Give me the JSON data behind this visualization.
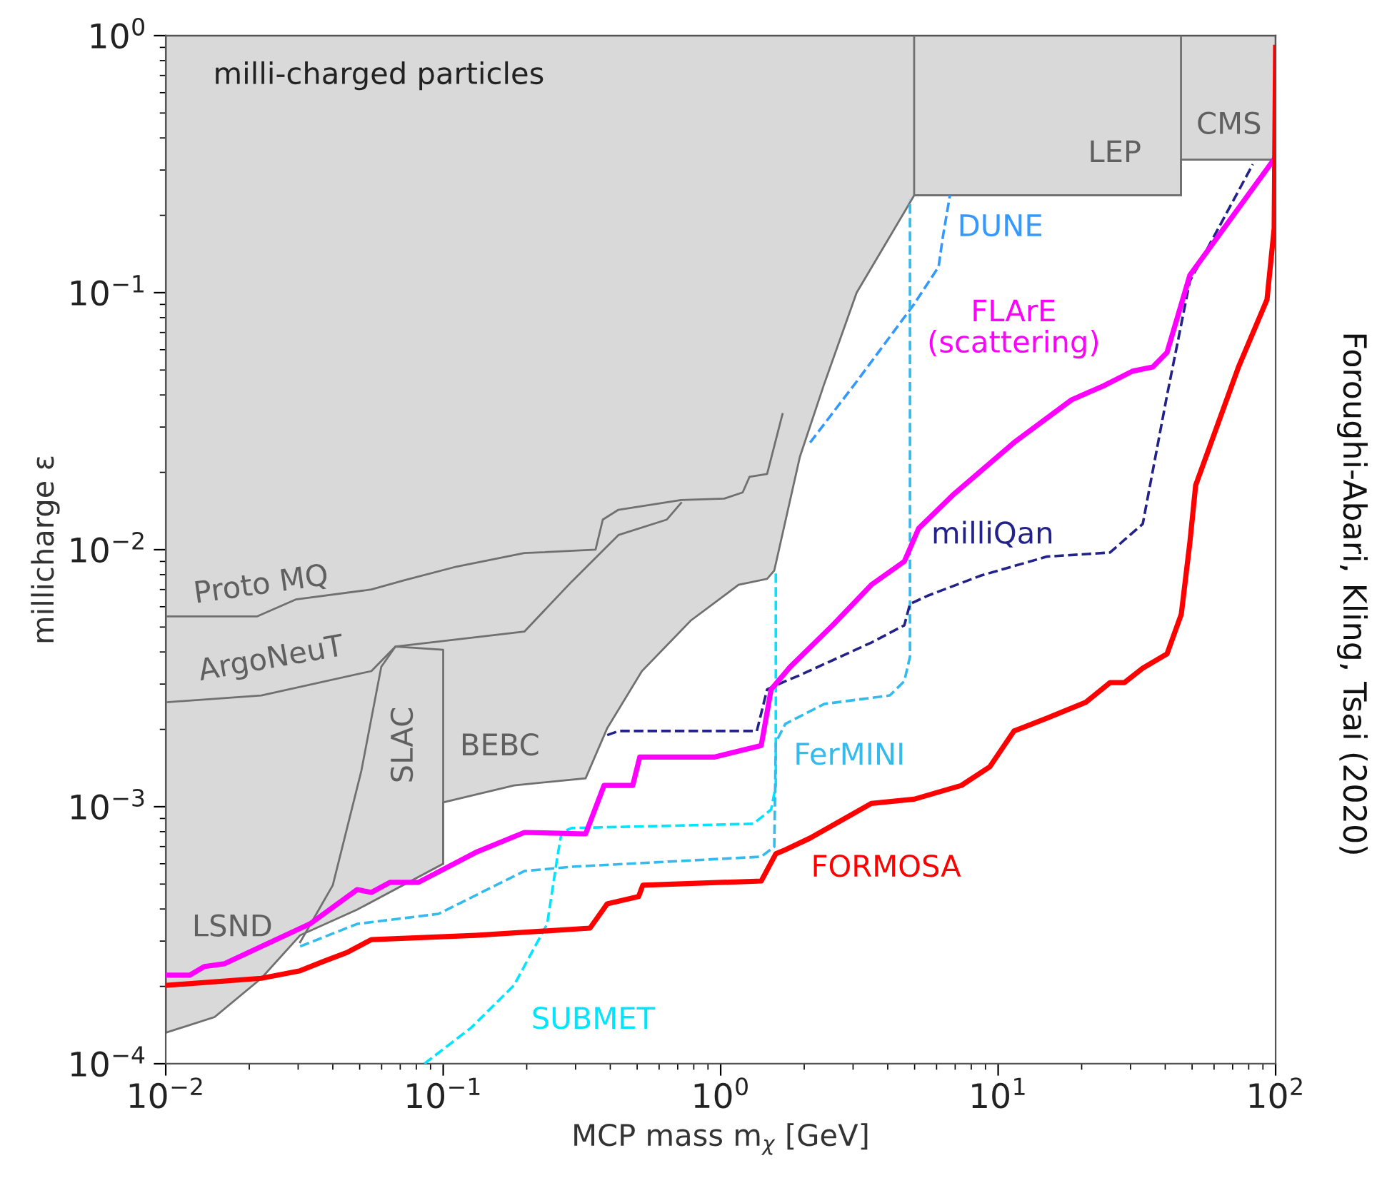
{
  "chart_data": {
    "type": "line",
    "xlabel": "MCP mass m$_{χ}$ [GeV]",
    "ylabel": "millicharge ε",
    "log": "xy",
    "grid": false,
    "legend": false,
    "xlim": [
      0.01,
      100
    ],
    "ylim": [
      0.0001,
      1
    ],
    "xticks": [
      {
        "value": 0.01,
        "label": "10$^{−2}$"
      },
      {
        "value": 0.1,
        "label": "10$^{−1}$"
      },
      {
        "value": 1,
        "label": "10$^{0}$"
      },
      {
        "value": 10,
        "label": "10$^{1}$"
      },
      {
        "value": 100,
        "label": "10$^{2}$"
      }
    ],
    "yticks": [
      {
        "value": 0.0001,
        "label": "10$^{−4}$"
      },
      {
        "value": 0.001,
        "label": "10$^{−3}$"
      },
      {
        "value": 0.01,
        "label": "10$^{−2}$"
      },
      {
        "value": 0.1,
        "label": "10$^{−1}$"
      },
      {
        "value": 1,
        "label": "10$^{0}$"
      }
    ],
    "series": [
      {
        "type": "area",
        "color": "#d9d9d9",
        "x": [
          0.01,
          0.01,
          0.015,
          0.0221,
          0.0305,
          0.049,
          0.1,
          0.1,
          0.18,
          0.326,
          0.39,
          0.52,
          0.78,
          1.16,
          1.47,
          1.56,
          1.93,
          2.35,
          3.09,
          4.24,
          4.98,
          45.6,
          45.6,
          100,
          100
        ],
        "values": [
          1,
          0.000132,
          0.000152,
          0.000215,
          0.000316,
          0.000398,
          0.0006,
          0.00104,
          0.00121,
          0.00129,
          0.00202,
          0.00337,
          0.0053,
          0.0073,
          0.0077,
          0.0083,
          0.023,
          0.0435,
          0.1,
          0.178,
          0.239,
          0.239,
          0.329,
          0.329,
          1
        ]
      },
      {
        "color": "#707070",
        "line_style": "solid",
        "x": [
          0.0101,
          0.0213,
          0.0294,
          0.0551,
          0.0722,
          0.112,
          0.196,
          0.354,
          0.376,
          0.428,
          0.72,
          1.03,
          1.2,
          1.27,
          1.47,
          1.67
        ],
        "values": [
          0.0055,
          0.0055,
          0.0064,
          0.007,
          0.0076,
          0.0086,
          0.0097,
          0.01,
          0.0131,
          0.0143,
          0.0156,
          0.0158,
          0.0167,
          0.0192,
          0.0197,
          0.0337
        ]
      },
      {
        "color": "#707070",
        "line_style": "solid",
        "x": [
          0.0101,
          0.0221,
          0.0551,
          0.0673,
          0.196,
          0.29,
          0.428,
          0.64,
          0.72
        ],
        "values": [
          0.00255,
          0.00271,
          0.00337,
          0.0042,
          0.0048,
          0.0075,
          0.0114,
          0.0131,
          0.0152
        ]
      },
      {
        "color": "#707070",
        "line_style": "solid",
        "x": [
          0.0305,
          0.04,
          0.0507,
          0.0598,
          0.0673,
          0.1,
          0.1
        ],
        "values": [
          0.000297,
          0.000495,
          0.00138,
          0.0035,
          0.0042,
          0.00408,
          0.0006
        ]
      },
      {
        "color": "#707070",
        "line_style": "solid",
        "x": [
          4.98,
          4.98,
          45.6,
          45.6
        ],
        "values": [
          1,
          0.239,
          0.239,
          1
        ]
      },
      {
        "name": "DUNE",
        "color": "#3399ff",
        "line_style": "dashed",
        "x": [
          2.1,
          3.1,
          4.98,
          6.1,
          6.31,
          6.7
        ],
        "values": [
          0.0261,
          0.0453,
          0.0903,
          0.126,
          0.163,
          0.239
        ]
      },
      {
        "name": "SUBMET",
        "color": "#00e5ff",
        "line_style": "dashed",
        "x": [
          0.0855,
          0.126,
          0.18,
          0.237,
          0.258,
          0.267,
          0.29,
          1.31,
          1.52,
          1.58,
          1.58
        ],
        "values": [
          0.0001,
          0.000138,
          0.000202,
          0.00035,
          0.000639,
          0.000794,
          0.000826,
          0.000858,
          0.000975,
          0.00121,
          0.0083
        ]
      },
      {
        "name": "FerMINI",
        "color": "#33bbee",
        "line_style": "dashed",
        "x": [
          0.0305,
          0.049,
          0.0962,
          0.196,
          0.29,
          1.4,
          1.56,
          1.58,
          1.71,
          2.36,
          4.07,
          4.59,
          4.81,
          4.81
        ],
        "values": [
          0.000286,
          0.00035,
          0.000383,
          0.000562,
          0.000584,
          0.000639,
          0.000699,
          0.00178,
          0.0021,
          0.00251,
          0.00271,
          0.00308,
          0.00383,
          0.23
        ]
      },
      {
        "name": "milliQan",
        "color": "#22228a",
        "line_style": "dashed",
        "x": [
          0.39,
          0.429,
          1.35,
          1.47,
          1.71,
          1.93,
          3.49,
          4.59,
          4.81,
          5.61,
          8.69,
          15,
          25.3,
          33.2,
          40.6,
          49.1,
          82.8
        ],
        "values": [
          0.0019,
          0.00197,
          0.00197,
          0.00286,
          0.00308,
          0.00325,
          0.00435,
          0.00508,
          0.00615,
          0.00664,
          0.00794,
          0.0094,
          0.00975,
          0.0126,
          0.0398,
          0.111,
          0.316
        ]
      },
      {
        "name": "FLArE\n(scattering)",
        "color": "#ff00ff",
        "line_style": "solid",
        "x": [
          0.0101,
          0.0122,
          0.0138,
          0.0163,
          0.0221,
          0.0331,
          0.049,
          0.0551,
          0.0643,
          0.0814,
          0.131,
          0.196,
          0.326,
          0.38,
          0.482,
          0.511,
          0.948,
          1.4,
          1.52,
          1.78,
          2.54,
          3.49,
          4.59,
          5.17,
          6.86,
          11.4,
          18.4,
          24.1,
          30.5,
          36.1,
          40.6,
          49.1,
          100
        ],
        "values": [
          0.000221,
          0.000221,
          0.000239,
          0.000245,
          0.000286,
          0.00035,
          0.000476,
          0.000464,
          0.000508,
          0.000508,
          0.000664,
          0.000794,
          0.000784,
          0.00121,
          0.00121,
          0.00156,
          0.00156,
          0.00173,
          0.00286,
          0.0035,
          0.0051,
          0.0073,
          0.009,
          0.0121,
          0.0163,
          0.0261,
          0.0383,
          0.0435,
          0.0495,
          0.0514,
          0.0585,
          0.117,
          0.337
        ]
      },
      {
        "name": "FORMOSA",
        "color": "#ff0000",
        "line_style": "solid",
        "x": [
          0.0101,
          0.0221,
          0.0305,
          0.0373,
          0.045,
          0.0551,
          0.131,
          0.338,
          0.39,
          0.506,
          0.524,
          1.4,
          1.58,
          1.71,
          2.1,
          3.49,
          4.98,
          7.37,
          9.33,
          11.4,
          15,
          20.7,
          25.3,
          28.5,
          33.2,
          40.6,
          45.7,
          49.1,
          51.5,
          73.5,
          93.1,
          98.8,
          100
        ],
        "values": [
          0.000202,
          0.000215,
          0.00023,
          0.000251,
          0.000271,
          0.000304,
          0.000316,
          0.000337,
          0.000419,
          0.000447,
          0.000495,
          0.000514,
          0.000656,
          0.00068,
          0.000755,
          0.00103,
          0.00107,
          0.00121,
          0.00143,
          0.00197,
          0.00221,
          0.00255,
          0.00304,
          0.00304,
          0.00346,
          0.00393,
          0.0056,
          0.0107,
          0.0178,
          0.0514,
          0.094,
          0.178,
          0.9
        ]
      }
    ],
    "annotations": [
      "milli-charged particles",
      "Proto MQ",
      "ArgoNeuT",
      "SLAC",
      "BEBC",
      "LSND",
      "LEP",
      "CMS",
      "Foroughi-Abari, Kling, Tsai (2020)"
    ]
  }
}
